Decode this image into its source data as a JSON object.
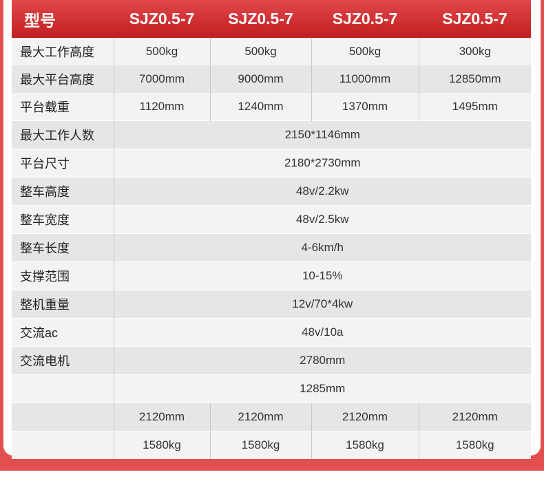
{
  "colors": {
    "accent": "#e24f50",
    "header_top": "#e1474b",
    "header_bottom": "#c01f20",
    "row_light": "#f3f3f3",
    "row_dark": "#e6e6e6"
  },
  "header": {
    "label": "型号",
    "models": [
      "SJZ0.5-7",
      "SJZ0.5-7",
      "SJZ0.5-7",
      "SJZ0.5-7"
    ]
  },
  "rows": [
    {
      "label": "最大工作高度",
      "values": [
        "500kg",
        "500kg",
        "500kg",
        "300kg"
      ]
    },
    {
      "label": "最大平台高度",
      "values": [
        "7000mm",
        "9000mm",
        "11000mm",
        "12850mm"
      ]
    },
    {
      "label": "平台载重",
      "values": [
        "1120mm",
        "1240mm",
        "1370mm",
        "1495mm"
      ]
    },
    {
      "label": "最大工作人数",
      "value": "2150*1146mm"
    },
    {
      "label": "平台尺寸",
      "value": "2180*2730mm"
    },
    {
      "label": "整车高度",
      "value": "48v/2.2kw"
    },
    {
      "label": "整车宽度",
      "value": "48v/2.5kw"
    },
    {
      "label": "整车长度",
      "value": "4-6km/h"
    },
    {
      "label": "支撑范围",
      "value": "10-15%"
    },
    {
      "label": "整机重量",
      "value": "12v/70*4kw"
    },
    {
      "label": "交流ac",
      "value": "48v/10a"
    },
    {
      "label": "交流电机",
      "value": "2780mm"
    },
    {
      "label": "",
      "value": "1285mm"
    },
    {
      "label": "",
      "values": [
        "2120mm",
        "2120mm",
        "2120mm",
        "2120mm"
      ]
    },
    {
      "label": "",
      "values": [
        "1580kg",
        "1580kg",
        "1580kg",
        "1580kg"
      ]
    }
  ]
}
